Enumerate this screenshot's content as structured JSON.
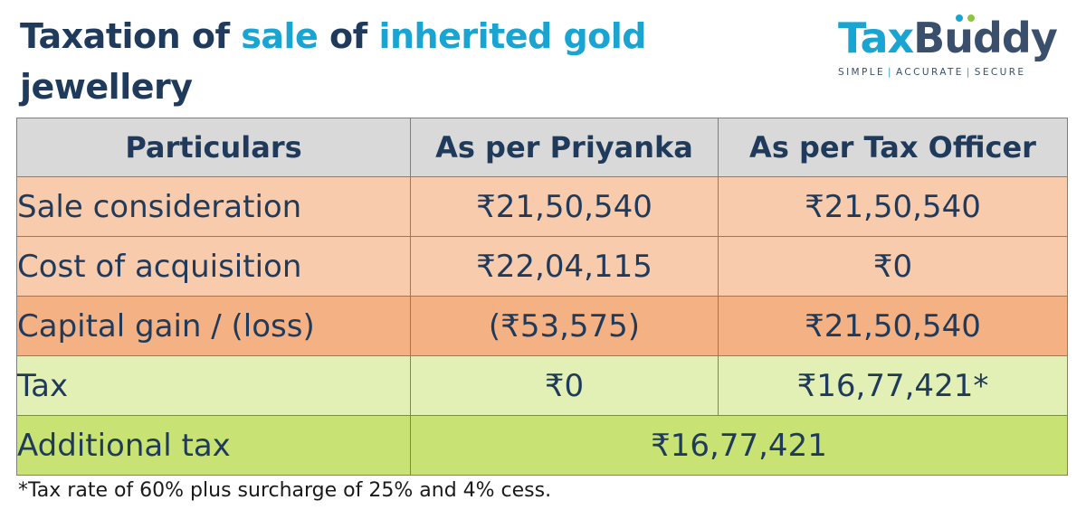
{
  "title": {
    "part1": "Taxation of ",
    "part2": "sale",
    "part3": " of ",
    "part4": "inherited gold",
    "part5": "jewellery"
  },
  "logo": {
    "word_a": "Tax",
    "word_b": "Buddy",
    "tag_1": "SIMPLE",
    "tag_sep": "|",
    "tag_2": "ACCURATE",
    "tag_3": "SECURE",
    "colors": {
      "primary": "#1aa4d1",
      "secondary": "#3a4f6b"
    }
  },
  "table": {
    "headers": [
      "Particulars",
      "As per Priyanka",
      "As per Tax Officer"
    ],
    "rows": [
      {
        "label": "Sale consideration",
        "priyanka": "₹21,50,540",
        "officer": "₹21,50,540"
      },
      {
        "label": "Cost of acquisition",
        "priyanka": "₹22,04,115",
        "officer": "₹0"
      },
      {
        "label": "Capital gain / (loss)",
        "priyanka": "(₹53,575)",
        "officer": "₹21,50,540"
      },
      {
        "label": "Tax",
        "priyanka": "₹0",
        "officer": "₹16,77,421*"
      }
    ],
    "total": {
      "label": "Additional tax",
      "value": "₹16,77,421"
    }
  },
  "footnote": "*Tax rate of 60% plus surcharge of 25% and 4% cess.",
  "colors": {
    "header": "#d9d9d9",
    "peach": "#f8cbad",
    "orange": "#f4b183",
    "light_green": "#e2f0b6",
    "green": "#c9e274",
    "text": "#1f3a5a",
    "accent": "#1aa4d1"
  }
}
